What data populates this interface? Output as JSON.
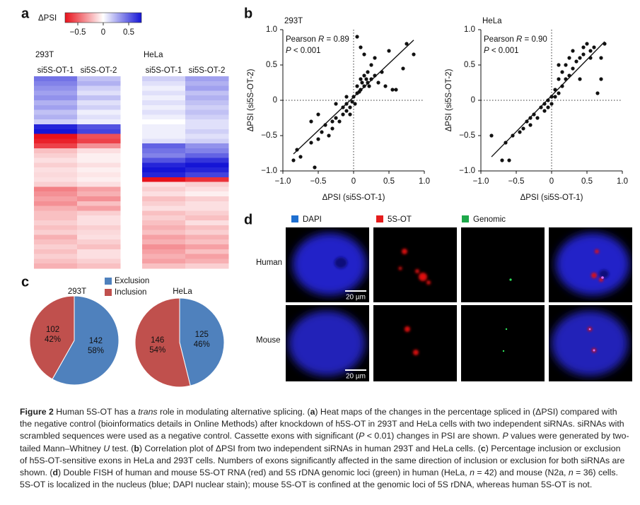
{
  "panel_labels": [
    "a",
    "b",
    "c",
    "d"
  ],
  "chart_data": [
    {
      "type": "heatmap",
      "title": "293T",
      "columns": [
        "si5S-OT-1",
        "si5S-OT-2"
      ],
      "colorbar": {
        "title": "ΔPSI",
        "lim": [
          -0.75,
          0.75
        ],
        "colors": [
          "#e8111b",
          "#ffffff",
          "#1515d6"
        ],
        "ticks": [
          {
            "value": -0.5,
            "label": "−0.5"
          },
          0,
          0.5
        ]
      },
      "values": [
        [
          0.45,
          0.2
        ],
        [
          0.4,
          0.25
        ],
        [
          0.35,
          0.15
        ],
        [
          0.3,
          0.1
        ],
        [
          0.35,
          0.2
        ],
        [
          0.25,
          0.1
        ],
        [
          0.3,
          0.15
        ],
        [
          0.2,
          0.05
        ],
        [
          0.25,
          0.1
        ],
        [
          0.15,
          0.05
        ],
        [
          0.7,
          0.55
        ],
        [
          0.75,
          0.6
        ],
        [
          -0.75,
          -0.55
        ],
        [
          -0.7,
          -0.6
        ],
        [
          -0.6,
          -0.35
        ],
        [
          -0.2,
          -0.1
        ],
        [
          -0.15,
          -0.05
        ],
        [
          -0.1,
          -0.05
        ],
        [
          -0.15,
          -0.1
        ],
        [
          -0.1,
          -0.05
        ],
        [
          -0.12,
          -0.08
        ],
        [
          -0.1,
          -0.05
        ],
        [
          -0.15,
          -0.1
        ],
        [
          -0.4,
          -0.3
        ],
        [
          -0.35,
          -0.25
        ],
        [
          -0.3,
          -0.35
        ],
        [
          -0.35,
          -0.2
        ],
        [
          -0.25,
          -0.3
        ],
        [
          -0.2,
          -0.15
        ],
        [
          -0.2,
          -0.1
        ],
        [
          -0.15,
          -0.1
        ],
        [
          -0.2,
          -0.15
        ],
        [
          -0.15,
          -0.12
        ],
        [
          -0.25,
          -0.1
        ],
        [
          -0.2,
          -0.15
        ],
        [
          -0.15,
          -0.2
        ],
        [
          -0.2,
          -0.1
        ],
        [
          -0.15,
          -0.1
        ],
        [
          -0.2,
          -0.15
        ],
        [
          -0.25,
          -0.2
        ]
      ]
    },
    {
      "type": "heatmap",
      "title": "HeLa",
      "columns": [
        "si5S-OT-1",
        "si5S-OT-2"
      ],
      "values": [
        [
          0.15,
          0.3
        ],
        [
          0.1,
          0.25
        ],
        [
          0.05,
          0.3
        ],
        [
          0.1,
          0.2
        ],
        [
          0.05,
          0.25
        ],
        [
          0.1,
          0.2
        ],
        [
          0.05,
          0.15
        ],
        [
          0.1,
          0.2
        ],
        [
          0.05,
          0.15
        ],
        [
          0,
          0.1
        ],
        [
          0.05,
          0.1
        ],
        [
          0.05,
          0.15
        ],
        [
          0.05,
          0.1
        ],
        [
          0.1,
          0.15
        ],
        [
          0.5,
          0.35
        ],
        [
          0.45,
          0.4
        ],
        [
          0.4,
          0.5
        ],
        [
          0.55,
          0.65
        ],
        [
          0.7,
          0.75
        ],
        [
          0.75,
          0.7
        ],
        [
          0.7,
          0.6
        ],
        [
          -0.75,
          -0.65
        ],
        [
          -0.1,
          -0.15
        ],
        [
          -0.15,
          -0.1
        ],
        [
          -0.1,
          -0.05
        ],
        [
          -0.2,
          -0.15
        ],
        [
          -0.15,
          -0.1
        ],
        [
          -0.1,
          -0.1
        ],
        [
          -0.2,
          -0.15
        ],
        [
          -0.15,
          -0.2
        ],
        [
          -0.2,
          -0.1
        ],
        [
          -0.25,
          -0.2
        ],
        [
          -0.2,
          -0.15
        ],
        [
          -0.3,
          -0.25
        ],
        [
          -0.25,
          -0.2
        ],
        [
          -0.35,
          -0.3
        ],
        [
          -0.3,
          -0.2
        ],
        [
          -0.25,
          -0.3
        ],
        [
          -0.3,
          -0.25
        ],
        [
          -0.2,
          -0.15
        ]
      ]
    },
    {
      "type": "scatter",
      "title": "293T",
      "x_label": "ΔPSI (si5S-OT-1)",
      "y_label": "ΔPSI (si5S-OT-2)",
      "annotations": [
        [
          "Pearson ",
          "R",
          " = 0.89"
        ],
        [
          "P",
          " < 0.001"
        ]
      ],
      "xlim": [
        -1,
        1
      ],
      "ylim": [
        -1,
        1
      ],
      "xticks": [
        {
          "value": -1,
          "label": "−1.0"
        },
        {
          "value": -0.5,
          "label": "−0.5"
        },
        0,
        0.5,
        {
          "value": 1,
          "label": "1.0"
        }
      ],
      "yticks": [
        {
          "value": -1,
          "label": "−1.0"
        },
        {
          "value": -0.5,
          "label": "−0.5"
        },
        0,
        0.5,
        {
          "value": 1,
          "label": "1.0"
        }
      ],
      "x": [
        -0.85,
        -0.8,
        -0.75,
        -0.55,
        -0.6,
        -0.5,
        -0.45,
        -0.4,
        -0.35,
        -0.3,
        -0.3,
        -0.25,
        -0.2,
        -0.15,
        -0.15,
        -0.1,
        -0.1,
        -0.05,
        -0.05,
        -0.5,
        -0.6,
        -0.25,
        0,
        0.05,
        0.05,
        0.1,
        0.1,
        0.15,
        0.15,
        0.2,
        0.2,
        0.25,
        0.25,
        0.3,
        0.3,
        0.35,
        0.4,
        0.45,
        0.55,
        0.6,
        0.7,
        0.75,
        0.85,
        0.1,
        0.05,
        0.15,
        0.5,
        -0.02,
        0.02,
        -0.1,
        0.08,
        0.18,
        0.22,
        0.12
      ],
      "y": [
        -0.85,
        -0.7,
        -0.8,
        -0.95,
        -0.6,
        -0.55,
        -0.45,
        -0.35,
        -0.5,
        -0.3,
        -0.4,
        -0.25,
        -0.3,
        -0.2,
        -0.1,
        -0.15,
        -0.05,
        -0.1,
        -0.2,
        -0.2,
        -0.3,
        -0.05,
        0.05,
        0.1,
        0.2,
        0.15,
        0.3,
        0.2,
        0.35,
        0.25,
        0.4,
        0.3,
        0.5,
        0.35,
        0.6,
        0.25,
        0.4,
        0.2,
        0.15,
        0.15,
        0.45,
        0.8,
        0.65,
        0.75,
        0.9,
        0.65,
        0.7,
        -0.02,
        -0.05,
        0.05,
        0.12,
        0.3,
        0.2,
        0.25
      ]
    },
    {
      "type": "scatter",
      "title": "HeLa",
      "x_label": "ΔPSI (si5S-OT-1)",
      "y_label": "ΔPSI (si5S-OT-2)",
      "annotations": [
        [
          "Pearson ",
          "R",
          " = 0.90"
        ],
        [
          "P",
          " < 0.001"
        ]
      ],
      "xlim": [
        -1,
        1
      ],
      "ylim": [
        -1,
        1
      ],
      "xticks": [
        {
          "value": -1,
          "label": "−1.0"
        },
        {
          "value": -0.5,
          "label": "−0.5"
        },
        0,
        0.5,
        {
          "value": 1,
          "label": "1.0"
        }
      ],
      "yticks": [
        {
          "value": -1,
          "label": "−1.0"
        },
        {
          "value": -0.5,
          "label": "−0.5"
        },
        0,
        0.5,
        {
          "value": 1,
          "label": "1.0"
        }
      ],
      "x": [
        -0.85,
        -0.7,
        -0.65,
        -0.6,
        -0.55,
        -0.45,
        -0.4,
        -0.35,
        -0.3,
        -0.25,
        -0.2,
        -0.15,
        -0.1,
        -0.1,
        -0.05,
        -0.05,
        0,
        0.05,
        0.05,
        0.1,
        0.1,
        0.15,
        0.15,
        0.2,
        0.2,
        0.25,
        0.25,
        0.3,
        0.3,
        0.35,
        0.4,
        0.45,
        0.5,
        0.55,
        0.6,
        0.7,
        0.7,
        0.75,
        0.65,
        0.55,
        0.1,
        0.4,
        0.45,
        -0.3,
        0
      ],
      "y": [
        -0.5,
        -0.85,
        -0.6,
        -0.85,
        -0.5,
        -0.45,
        -0.4,
        -0.3,
        -0.35,
        -0.2,
        -0.25,
        -0.1,
        -0.15,
        -0.05,
        -0.1,
        0,
        -0.05,
        0.05,
        0.15,
        0.1,
        0.3,
        0.4,
        0.2,
        0.5,
        0.3,
        0.6,
        0.35,
        0.7,
        0.45,
        0.55,
        0.6,
        0.65,
        0.8,
        0.7,
        0.75,
        0.6,
        0.3,
        0.8,
        0.1,
        0.6,
        0.5,
        0.3,
        0.75,
        -0.25,
        0.05
      ]
    },
    {
      "type": "pie",
      "title": "293T",
      "categories": [
        "Exclusion",
        "Inclusion"
      ],
      "colors": [
        "#4f81bd",
        "#c0504d"
      ],
      "values": [
        142,
        102
      ],
      "percent_labels": [
        "58%",
        "42%"
      ]
    },
    {
      "type": "pie",
      "title": "HeLa",
      "categories": [
        "Exclusion",
        "Inclusion"
      ],
      "colors": [
        "#4f81bd",
        "#c0504d"
      ],
      "values": [
        125,
        146
      ],
      "percent_labels": [
        "46%",
        "54%"
      ]
    }
  ],
  "panel_d": {
    "legend": [
      "DAPI",
      "5S-OT",
      "Genomic"
    ],
    "rows": [
      "Human",
      "Mouse"
    ],
    "scale_bar": "20 µm"
  },
  "caption": [
    "Figure 2",
    "  Human 5S-OT has a ",
    "trans",
    " role in modulating alternative splicing. (",
    "a",
    ") Heat maps of the changes in the percentage spliced in (ΔPSI) compared with the negative control (bioinformatics details in Online Methods) after knockdown of h5S-OT in 293T and HeLa cells with two independent siRNAs. siRNAs with scrambled sequences were used as a negative control. Cassette exons with significant (",
    "P",
    " < 0.01) changes in PSI are shown. ",
    "P",
    " values were generated by two-tailed Mann–Whitney ",
    "U",
    " test. (",
    "b",
    ") Correlation plot of ΔPSI from two independent siRNAs in human 293T and HeLa cells. (",
    "c",
    ") Percentage inclusion or exclusion of h5S-OT-sensitive exons in HeLa and 293T cells. Numbers of exons significantly affected in the same direction of inclusion or exclusion for both siRNAs are shown. (",
    "d",
    ") Double FISH of human and mouse 5S-OT RNA (red) and 5S rDNA genomic loci (green) in human (HeLa, ",
    "n",
    " = 42) and mouse (N2a, ",
    "n",
    " = 36) cells. 5S-OT is localized in the nucleus (blue; DAPI nuclear stain); mouse 5S-OT is confined at the genomic loci of 5S rDNA, whereas human 5S-OT is not."
  ]
}
